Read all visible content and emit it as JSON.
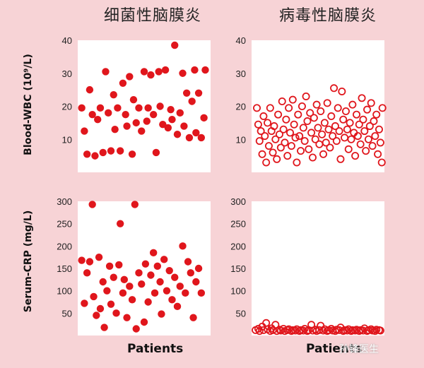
{
  "headers": {
    "left": "细菌性脑膜炎",
    "right": "病毒性脑膜炎"
  },
  "ylabels": {
    "top": "Blood-WBC (10⁹/L)",
    "bottom": "Serum-CRP (mg/L)"
  },
  "xlabels": {
    "left": "Patients",
    "right": "Patients"
  },
  "watermark": "孙锋医生",
  "colors": {
    "background": "#f7d3d6",
    "marker": "#e0161c",
    "plot_bg": "#ffffff"
  },
  "chart_data": [
    {
      "type": "scatter",
      "marker": "filled",
      "ylim": [
        0,
        40
      ],
      "yticks": [
        10,
        20,
        30,
        40
      ],
      "xlabel": "",
      "ylabel": "Blood-WBC (10⁹/L)",
      "points": [
        [
          0.03,
          19.5
        ],
        [
          0.05,
          12.5
        ],
        [
          0.07,
          5.5
        ],
        [
          0.09,
          25
        ],
        [
          0.11,
          17.5
        ],
        [
          0.13,
          5
        ],
        [
          0.15,
          16
        ],
        [
          0.17,
          19.5
        ],
        [
          0.19,
          6
        ],
        [
          0.21,
          30.5
        ],
        [
          0.23,
          18
        ],
        [
          0.25,
          6.5
        ],
        [
          0.27,
          23.5
        ],
        [
          0.28,
          13
        ],
        [
          0.3,
          19.5
        ],
        [
          0.32,
          6.5
        ],
        [
          0.34,
          27
        ],
        [
          0.36,
          17.5
        ],
        [
          0.37,
          14
        ],
        [
          0.39,
          29
        ],
        [
          0.41,
          5.5
        ],
        [
          0.42,
          22
        ],
        [
          0.44,
          15
        ],
        [
          0.46,
          19.5
        ],
        [
          0.48,
          12.5
        ],
        [
          0.5,
          30.5
        ],
        [
          0.52,
          15.5
        ],
        [
          0.53,
          19.5
        ],
        [
          0.55,
          29.5
        ],
        [
          0.57,
          17.5
        ],
        [
          0.59,
          6
        ],
        [
          0.61,
          30.5
        ],
        [
          0.62,
          20
        ],
        [
          0.64,
          14.5
        ],
        [
          0.66,
          31
        ],
        [
          0.68,
          13.5
        ],
        [
          0.7,
          19
        ],
        [
          0.71,
          16
        ],
        [
          0.73,
          38.5
        ],
        [
          0.75,
          11.5
        ],
        [
          0.77,
          18
        ],
        [
          0.79,
          30
        ],
        [
          0.8,
          14
        ],
        [
          0.82,
          24
        ],
        [
          0.84,
          10.5
        ],
        [
          0.86,
          21.5
        ],
        [
          0.88,
          31
        ],
        [
          0.89,
          12
        ],
        [
          0.91,
          24
        ],
        [
          0.93,
          10.5
        ],
        [
          0.95,
          16.5
        ],
        [
          0.96,
          31
        ]
      ]
    },
    {
      "type": "scatter",
      "marker": "open",
      "ylim": [
        0,
        40
      ],
      "yticks": [
        10,
        20,
        30,
        40
      ],
      "xlabel": "",
      "ylabel": "",
      "points": [
        [
          0.04,
          19.5
        ],
        [
          0.05,
          14.5
        ],
        [
          0.06,
          9.5
        ],
        [
          0.07,
          12.5
        ],
        [
          0.08,
          5.5
        ],
        [
          0.09,
          17
        ],
        [
          0.1,
          11
        ],
        [
          0.11,
          3
        ],
        [
          0.12,
          15
        ],
        [
          0.13,
          8
        ],
        [
          0.14,
          19.5
        ],
        [
          0.15,
          12.5
        ],
        [
          0.16,
          6
        ],
        [
          0.17,
          14
        ],
        [
          0.18,
          10
        ],
        [
          0.19,
          4
        ],
        [
          0.2,
          17.5
        ],
        [
          0.21,
          11.5
        ],
        [
          0.22,
          7.5
        ],
        [
          0.23,
          21.5
        ],
        [
          0.24,
          13
        ],
        [
          0.25,
          9
        ],
        [
          0.26,
          16
        ],
        [
          0.27,
          5
        ],
        [
          0.28,
          19.5
        ],
        [
          0.29,
          12
        ],
        [
          0.3,
          8
        ],
        [
          0.31,
          22
        ],
        [
          0.32,
          14.5
        ],
        [
          0.33,
          10.5
        ],
        [
          0.34,
          3
        ],
        [
          0.35,
          17.5
        ],
        [
          0.36,
          11
        ],
        [
          0.37,
          6.5
        ],
        [
          0.38,
          20
        ],
        [
          0.39,
          13.5
        ],
        [
          0.4,
          9.5
        ],
        [
          0.41,
          23
        ],
        [
          0.42,
          15.5
        ],
        [
          0.43,
          7
        ],
        [
          0.44,
          18
        ],
        [
          0.45,
          12
        ],
        [
          0.46,
          4.5
        ],
        [
          0.47,
          16.5
        ],
        [
          0.48,
          10
        ],
        [
          0.49,
          20.5
        ],
        [
          0.5,
          13.5
        ],
        [
          0.51,
          8.5
        ],
        [
          0.52,
          18.5
        ],
        [
          0.53,
          11.5
        ],
        [
          0.54,
          5.5
        ],
        [
          0.55,
          15
        ],
        [
          0.56,
          9
        ],
        [
          0.57,
          21
        ],
        [
          0.58,
          13
        ],
        [
          0.59,
          7.5
        ],
        [
          0.6,
          17
        ],
        [
          0.61,
          11
        ],
        [
          0.62,
          25.5
        ],
        [
          0.63,
          14
        ],
        [
          0.64,
          9.5
        ],
        [
          0.65,
          19.5
        ],
        [
          0.66,
          12.5
        ],
        [
          0.67,
          4
        ],
        [
          0.68,
          24.5
        ],
        [
          0.69,
          16
        ],
        [
          0.7,
          10.5
        ],
        [
          0.71,
          18.5
        ],
        [
          0.72,
          13
        ],
        [
          0.73,
          7
        ],
        [
          0.74,
          15
        ],
        [
          0.75,
          10
        ],
        [
          0.76,
          20.5
        ],
        [
          0.77,
          12
        ],
        [
          0.78,
          5
        ],
        [
          0.79,
          17.5
        ],
        [
          0.8,
          11
        ],
        [
          0.81,
          14.5
        ],
        [
          0.82,
          8.5
        ],
        [
          0.83,
          22.5
        ],
        [
          0.84,
          16
        ],
        [
          0.85,
          12.5
        ],
        [
          0.86,
          6.5
        ],
        [
          0.87,
          19
        ],
        [
          0.88,
          10
        ],
        [
          0.89,
          14
        ],
        [
          0.9,
          21
        ],
        [
          0.91,
          8
        ],
        [
          0.92,
          15.5
        ],
        [
          0.93,
          11
        ],
        [
          0.94,
          17.5
        ],
        [
          0.95,
          5.5
        ],
        [
          0.96,
          13
        ],
        [
          0.97,
          9
        ],
        [
          0.98,
          3
        ],
        [
          0.985,
          19.5
        ]
      ]
    },
    {
      "type": "scatter",
      "marker": "filled",
      "ylim": [
        0,
        300
      ],
      "yticks": [
        50,
        100,
        150,
        200,
        250,
        300
      ],
      "xlabel": "Patients",
      "ylabel": "Serum-CRP (mg/L)",
      "points": [
        [
          0.03,
          168
        ],
        [
          0.05,
          72
        ],
        [
          0.07,
          140
        ],
        [
          0.09,
          165
        ],
        [
          0.11,
          293
        ],
        [
          0.12,
          87
        ],
        [
          0.14,
          45
        ],
        [
          0.16,
          175
        ],
        [
          0.17,
          60
        ],
        [
          0.19,
          120
        ],
        [
          0.2,
          18
        ],
        [
          0.22,
          100
        ],
        [
          0.24,
          155
        ],
        [
          0.25,
          70
        ],
        [
          0.27,
          130
        ],
        [
          0.29,
          50
        ],
        [
          0.31,
          158
        ],
        [
          0.32,
          250
        ],
        [
          0.34,
          95
        ],
        [
          0.35,
          125
        ],
        [
          0.37,
          40
        ],
        [
          0.39,
          110
        ],
        [
          0.41,
          80
        ],
        [
          0.43,
          293
        ],
        [
          0.44,
          15
        ],
        [
          0.46,
          140
        ],
        [
          0.48,
          115
        ],
        [
          0.5,
          30
        ],
        [
          0.51,
          160
        ],
        [
          0.53,
          75
        ],
        [
          0.55,
          135
        ],
        [
          0.57,
          185
        ],
        [
          0.58,
          95
        ],
        [
          0.6,
          155
        ],
        [
          0.62,
          120
        ],
        [
          0.63,
          48
        ],
        [
          0.65,
          170
        ],
        [
          0.67,
          100
        ],
        [
          0.69,
          145
        ],
        [
          0.71,
          80
        ],
        [
          0.73,
          130
        ],
        [
          0.75,
          65
        ],
        [
          0.77,
          110
        ],
        [
          0.79,
          200
        ],
        [
          0.81,
          95
        ],
        [
          0.83,
          165
        ],
        [
          0.85,
          140
        ],
        [
          0.87,
          40
        ],
        [
          0.89,
          120
        ],
        [
          0.91,
          150
        ],
        [
          0.93,
          95
        ]
      ]
    },
    {
      "type": "scatter",
      "marker": "open",
      "ylim": [
        0,
        300
      ],
      "yticks": [
        50,
        100,
        150,
        200,
        250,
        300
      ],
      "xlabel": "Patients",
      "ylabel": "",
      "points": [
        [
          0.03,
          12
        ],
        [
          0.05,
          15
        ],
        [
          0.06,
          10
        ],
        [
          0.08,
          20
        ],
        [
          0.09,
          12
        ],
        [
          0.11,
          28
        ],
        [
          0.12,
          14
        ],
        [
          0.14,
          10
        ],
        [
          0.15,
          16
        ],
        [
          0.16,
          12
        ],
        [
          0.18,
          24
        ],
        [
          0.19,
          10
        ],
        [
          0.21,
          13
        ],
        [
          0.22,
          11
        ],
        [
          0.24,
          15
        ],
        [
          0.25,
          10
        ],
        [
          0.27,
          12
        ],
        [
          0.28,
          14
        ],
        [
          0.3,
          10
        ],
        [
          0.31,
          12
        ],
        [
          0.33,
          11
        ],
        [
          0.34,
          14
        ],
        [
          0.36,
          10
        ],
        [
          0.37,
          12
        ],
        [
          0.39,
          11
        ],
        [
          0.4,
          15
        ],
        [
          0.42,
          10
        ],
        [
          0.43,
          12
        ],
        [
          0.45,
          24
        ],
        [
          0.46,
          11
        ],
        [
          0.48,
          13
        ],
        [
          0.49,
          10
        ],
        [
          0.51,
          12
        ],
        [
          0.52,
          22
        ],
        [
          0.54,
          11
        ],
        [
          0.55,
          14
        ],
        [
          0.57,
          10
        ],
        [
          0.58,
          12
        ],
        [
          0.6,
          15
        ],
        [
          0.61,
          11
        ],
        [
          0.63,
          10
        ],
        [
          0.64,
          13
        ],
        [
          0.66,
          12
        ],
        [
          0.67,
          18
        ],
        [
          0.69,
          10
        ],
        [
          0.7,
          12
        ],
        [
          0.72,
          11
        ],
        [
          0.73,
          14
        ],
        [
          0.75,
          10
        ],
        [
          0.76,
          12
        ],
        [
          0.78,
          11
        ],
        [
          0.79,
          13
        ],
        [
          0.81,
          10
        ],
        [
          0.82,
          12
        ],
        [
          0.84,
          11
        ],
        [
          0.85,
          16
        ],
        [
          0.87,
          10
        ],
        [
          0.88,
          12
        ],
        [
          0.9,
          14
        ],
        [
          0.91,
          11
        ],
        [
          0.93,
          10
        ],
        [
          0.94,
          13
        ],
        [
          0.96,
          12
        ],
        [
          0.97,
          11
        ]
      ]
    }
  ]
}
